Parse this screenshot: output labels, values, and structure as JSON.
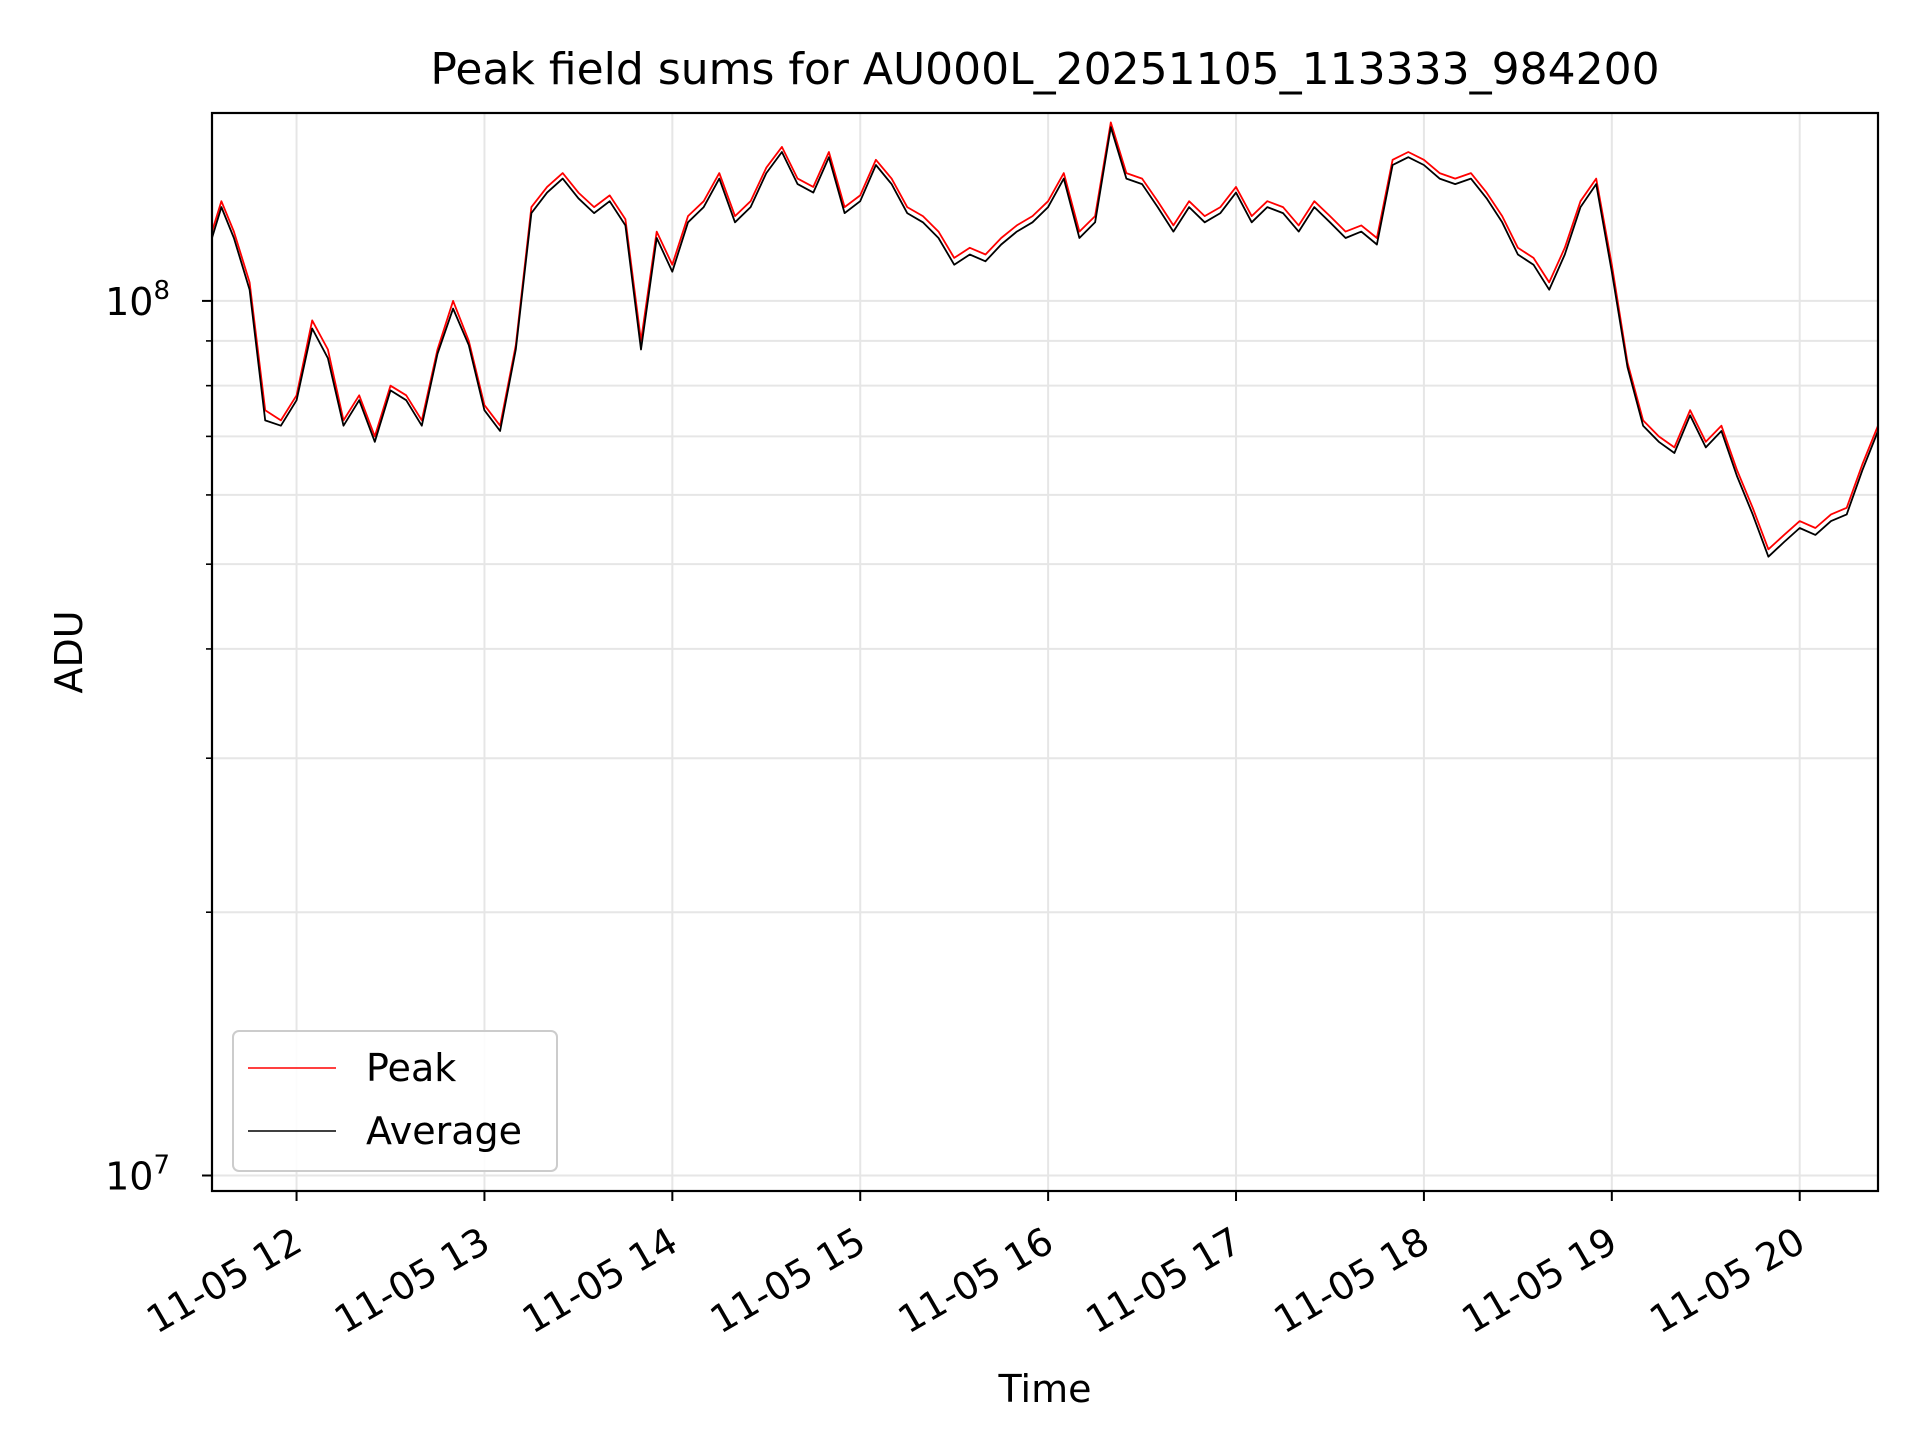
{
  "chart_data": {
    "type": "line",
    "title": "Peak field sums for AU000L_20251105_113333_984200",
    "xlabel": "Time",
    "ylabel": "ADU",
    "yscale": "log",
    "ylim": [
      9600000.0,
      164000000.0
    ],
    "xlim": [
      "11-05 11:33",
      "11-05 20:25"
    ],
    "grid": true,
    "legend_position": "bottom-left",
    "x_ticks": [
      "11-05 12",
      "11-05 13",
      "11-05 14",
      "11-05 15",
      "11-05 16",
      "11-05 17",
      "11-05 18",
      "11-05 19",
      "11-05 20"
    ],
    "y_tick_labels": [
      {
        "base": "10",
        "exp": "7",
        "value": 10000000.0
      },
      {
        "base": "10",
        "exp": "8",
        "value": 100000000.0
      }
    ],
    "series": [
      {
        "name": "Peak",
        "color": "#ff0000",
        "x": [
          "11-05 11:33",
          "11-05 11:36",
          "11-05 11:40",
          "11-05 11:45",
          "11-05 11:50",
          "11-05 11:55",
          "11-05 12:00",
          "11-05 12:05",
          "11-05 12:10",
          "11-05 12:15",
          "11-05 12:20",
          "11-05 12:25",
          "11-05 12:30",
          "11-05 12:35",
          "11-05 12:40",
          "11-05 12:45",
          "11-05 12:50",
          "11-05 12:55",
          "11-05 13:00",
          "11-05 13:05",
          "11-05 13:10",
          "11-05 13:15",
          "11-05 13:20",
          "11-05 13:25",
          "11-05 13:30",
          "11-05 13:35",
          "11-05 13:40",
          "11-05 13:45",
          "11-05 13:50",
          "11-05 13:55",
          "11-05 14:00",
          "11-05 14:05",
          "11-05 14:10",
          "11-05 14:15",
          "11-05 14:20",
          "11-05 14:25",
          "11-05 14:30",
          "11-05 14:35",
          "11-05 14:40",
          "11-05 14:45",
          "11-05 14:50",
          "11-05 14:55",
          "11-05 15:00",
          "11-05 15:05",
          "11-05 15:10",
          "11-05 15:15",
          "11-05 15:20",
          "11-05 15:25",
          "11-05 15:30",
          "11-05 15:35",
          "11-05 15:40",
          "11-05 15:45",
          "11-05 15:50",
          "11-05 15:55",
          "11-05 16:00",
          "11-05 16:05",
          "11-05 16:10",
          "11-05 16:15",
          "11-05 16:20",
          "11-05 16:25",
          "11-05 16:30",
          "11-05 16:35",
          "11-05 16:40",
          "11-05 16:45",
          "11-05 16:50",
          "11-05 16:55",
          "11-05 17:00",
          "11-05 17:05",
          "11-05 17:10",
          "11-05 17:15",
          "11-05 17:20",
          "11-05 17:25",
          "11-05 17:30",
          "11-05 17:35",
          "11-05 17:40",
          "11-05 17:45",
          "11-05 17:50",
          "11-05 17:55",
          "11-05 18:00",
          "11-05 18:05",
          "11-05 18:10",
          "11-05 18:15",
          "11-05 18:20",
          "11-05 18:25",
          "11-05 18:30",
          "11-05 18:35",
          "11-05 18:40",
          "11-05 18:45",
          "11-05 18:50",
          "11-05 18:55",
          "11-05 19:00",
          "11-05 19:05",
          "11-05 19:10",
          "11-05 19:15",
          "11-05 19:20",
          "11-05 19:25",
          "11-05 19:30",
          "11-05 19:35",
          "11-05 19:40",
          "11-05 19:45",
          "11-05 19:50",
          "11-05 19:55",
          "11-05 20:00",
          "11-05 20:05",
          "11-05 20:10",
          "11-05 20:15",
          "11-05 20:20",
          "11-05 20:25"
        ],
        "y": [
          120000000.0,
          130000000.0,
          120000000.0,
          105000000.0,
          75000000.0,
          73000000.0,
          78000000.0,
          95000000.0,
          88000000.0,
          73000000.0,
          78000000.0,
          70000000.0,
          80000000.0,
          78000000.0,
          73000000.0,
          88000000.0,
          100000000.0,
          90000000.0,
          76000000.0,
          72000000.0,
          89000000.0,
          128000000.0,
          135000000.0,
          140000000.0,
          133000000.0,
          128000000.0,
          132000000.0,
          124000000.0,
          90000000.0,
          120000000.0,
          110000000.0,
          125000000.0,
          130000000.0,
          140000000.0,
          125000000.0,
          130000000.0,
          142000000.0,
          150000000.0,
          138000000.0,
          135000000.0,
          148000000.0,
          128000000.0,
          132000000.0,
          145000000.0,
          138000000.0,
          128000000.0,
          125000000.0,
          120000000.0,
          112000000.0,
          115000000.0,
          113000000.0,
          118000000.0,
          122000000.0,
          125000000.0,
          130000000.0,
          140000000.0,
          120000000.0,
          125000000.0,
          160000000.0,
          140000000.0,
          138000000.0,
          130000000.0,
          122000000.0,
          130000000.0,
          125000000.0,
          128000000.0,
          135000000.0,
          125000000.0,
          130000000.0,
          128000000.0,
          122000000.0,
          130000000.0,
          125000000.0,
          120000000.0,
          122000000.0,
          118000000.0,
          145000000.0,
          148000000.0,
          145000000.0,
          140000000.0,
          138000000.0,
          140000000.0,
          133000000.0,
          125000000.0,
          115000000.0,
          112000000.0,
          105000000.0,
          115000000.0,
          130000000.0,
          138000000.0,
          110000000.0,
          85000000.0,
          73000000.0,
          70000000.0,
          68000000.0,
          75000000.0,
          69000000.0,
          72000000.0,
          64000000.0,
          58000000.0,
          52000000.0,
          54000000.0,
          56000000.0,
          55000000.0,
          57000000.0,
          58000000.0,
          65000000.0,
          72000000.0
        ]
      },
      {
        "name": "Average",
        "color": "#000000",
        "x": [
          "11-05 11:33",
          "11-05 11:36",
          "11-05 11:40",
          "11-05 11:45",
          "11-05 11:50",
          "11-05 11:55",
          "11-05 12:00",
          "11-05 12:05",
          "11-05 12:10",
          "11-05 12:15",
          "11-05 12:20",
          "11-05 12:25",
          "11-05 12:30",
          "11-05 12:35",
          "11-05 12:40",
          "11-05 12:45",
          "11-05 12:50",
          "11-05 12:55",
          "11-05 13:00",
          "11-05 13:05",
          "11-05 13:10",
          "11-05 13:15",
          "11-05 13:20",
          "11-05 13:25",
          "11-05 13:30",
          "11-05 13:35",
          "11-05 13:40",
          "11-05 13:45",
          "11-05 13:50",
          "11-05 13:55",
          "11-05 14:00",
          "11-05 14:05",
          "11-05 14:10",
          "11-05 14:15",
          "11-05 14:20",
          "11-05 14:25",
          "11-05 14:30",
          "11-05 14:35",
          "11-05 14:40",
          "11-05 14:45",
          "11-05 14:50",
          "11-05 14:55",
          "11-05 15:00",
          "11-05 15:05",
          "11-05 15:10",
          "11-05 15:15",
          "11-05 15:20",
          "11-05 15:25",
          "11-05 15:30",
          "11-05 15:35",
          "11-05 15:40",
          "11-05 15:45",
          "11-05 15:50",
          "11-05 15:55",
          "11-05 16:00",
          "11-05 16:05",
          "11-05 16:10",
          "11-05 16:15",
          "11-05 16:20",
          "11-05 16:25",
          "11-05 16:30",
          "11-05 16:35",
          "11-05 16:40",
          "11-05 16:45",
          "11-05 16:50",
          "11-05 16:55",
          "11-05 17:00",
          "11-05 17:05",
          "11-05 17:10",
          "11-05 17:15",
          "11-05 17:20",
          "11-05 17:25",
          "11-05 17:30",
          "11-05 17:35",
          "11-05 17:40",
          "11-05 17:45",
          "11-05 17:50",
          "11-05 17:55",
          "11-05 18:00",
          "11-05 18:05",
          "11-05 18:10",
          "11-05 18:15",
          "11-05 18:20",
          "11-05 18:25",
          "11-05 18:30",
          "11-05 18:35",
          "11-05 18:40",
          "11-05 18:45",
          "11-05 18:50",
          "11-05 18:55",
          "11-05 19:00",
          "11-05 19:05",
          "11-05 19:10",
          "11-05 19:15",
          "11-05 19:20",
          "11-05 19:25",
          "11-05 19:30",
          "11-05 19:35",
          "11-05 19:40",
          "11-05 19:45",
          "11-05 19:50",
          "11-05 19:55",
          "11-05 20:00",
          "11-05 20:05",
          "11-05 20:10",
          "11-05 20:15",
          "11-05 20:20",
          "11-05 20:25"
        ],
        "y": [
          118000000.0,
          128000000.0,
          118000000.0,
          103000000.0,
          73000000.0,
          72000000.0,
          77000000.0,
          93000000.0,
          86000000.0,
          72000000.0,
          77000000.0,
          69000000.0,
          79000000.0,
          77000000.0,
          72000000.0,
          87000000.0,
          98000000.0,
          89000000.0,
          75000000.0,
          71000000.0,
          88000000.0,
          126000000.0,
          133000000.0,
          138000000.0,
          131000000.0,
          126000000.0,
          130000000.0,
          122000000.0,
          88000000.0,
          118000000.0,
          108000000.0,
          123000000.0,
          128000000.0,
          138000000.0,
          123000000.0,
          128000000.0,
          140000000.0,
          148000000.0,
          136000000.0,
          133000000.0,
          146000000.0,
          126000000.0,
          130000000.0,
          143000000.0,
          136000000.0,
          126000000.0,
          123000000.0,
          118000000.0,
          110000000.0,
          113000000.0,
          111000000.0,
          116000000.0,
          120000000.0,
          123000000.0,
          128000000.0,
          138000000.0,
          118000000.0,
          123000000.0,
          158000000.0,
          138000000.0,
          136000000.0,
          128000000.0,
          120000000.0,
          128000000.0,
          123000000.0,
          126000000.0,
          133000000.0,
          123000000.0,
          128000000.0,
          126000000.0,
          120000000.0,
          128000000.0,
          123000000.0,
          118000000.0,
          120000000.0,
          116000000.0,
          143000000.0,
          146000000.0,
          143000000.0,
          138000000.0,
          136000000.0,
          138000000.0,
          131000000.0,
          123000000.0,
          113000000.0,
          110000000.0,
          103000000.0,
          113000000.0,
          128000000.0,
          136000000.0,
          108000000.0,
          84000000.0,
          72000000.0,
          69000000.0,
          67000000.0,
          74000000.0,
          68000000.0,
          71000000.0,
          63000000.0,
          57000000.0,
          51000000.0,
          53000000.0,
          55000000.0,
          54000000.0,
          56000000.0,
          57000000.0,
          64000000.0,
          71000000.0
        ]
      }
    ]
  }
}
